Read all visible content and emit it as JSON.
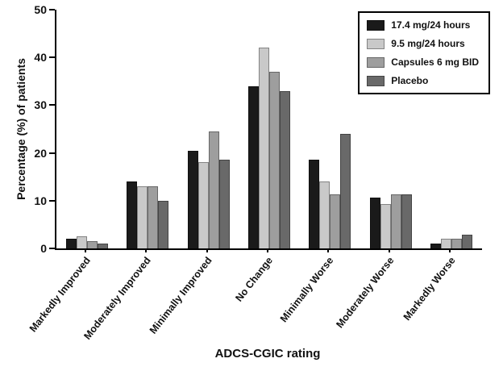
{
  "chart_data": {
    "type": "bar",
    "title": "",
    "xlabel": "ADCS-CGIC rating",
    "ylabel": "Percentage (%) of patients",
    "ylim": [
      0,
      50
    ],
    "yticks": [
      0,
      10,
      20,
      30,
      40,
      50
    ],
    "grid": false,
    "legend_position": "top-right",
    "categories": [
      "Markedly Improved",
      "Moderately Improved",
      "Minimally Improved",
      "No Change",
      "Minimally Worse",
      "Moderately Worse",
      "Markedly Worse"
    ],
    "series": [
      {
        "name": "17.4 mg/24 hours",
        "color": "#1a1a1a",
        "values": [
          2,
          14,
          20.5,
          34,
          18.5,
          10.7,
          1
        ]
      },
      {
        "name": "9.5 mg/24 hours",
        "color": "#c9c9c9",
        "values": [
          2.5,
          13,
          18,
          42,
          14,
          9.3,
          2
        ]
      },
      {
        "name": "Capsules 6 mg BID",
        "color": "#9e9e9e",
        "values": [
          1.5,
          13,
          24.5,
          37,
          11.3,
          11.3,
          2
        ]
      },
      {
        "name": "Placebo",
        "color": "#696969",
        "values": [
          1,
          10,
          18.5,
          33,
          24,
          11.3,
          2.8
        ]
      }
    ]
  }
}
